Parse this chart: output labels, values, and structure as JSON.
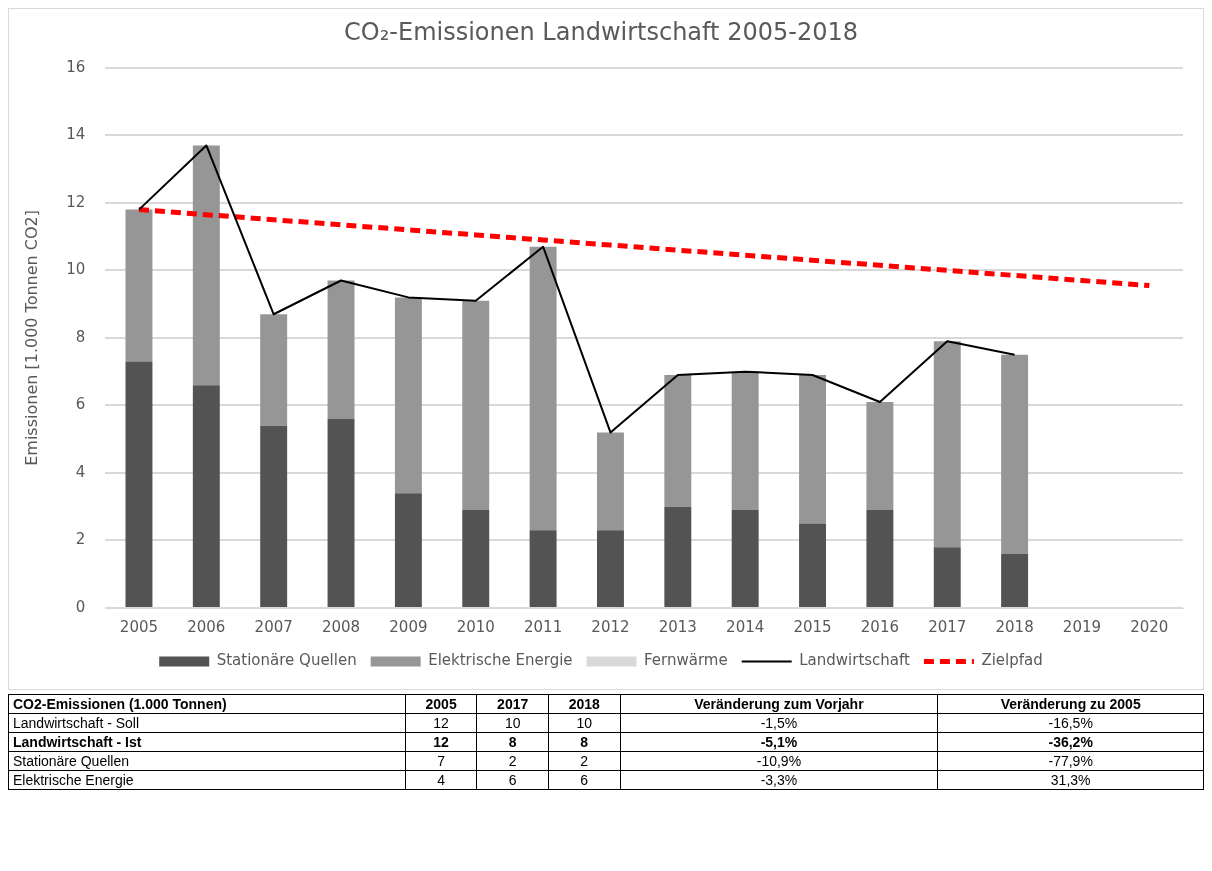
{
  "chart_data": {
    "type": "bar",
    "title": "CO₂-Emissionen Landwirtschaft 2005-2018",
    "ylabel": "Emissionen [1.000 Tonnen CO2]",
    "categories": [
      "2005",
      "2006",
      "2007",
      "2008",
      "2009",
      "2010",
      "2011",
      "2012",
      "2013",
      "2014",
      "2015",
      "2016",
      "2017",
      "2018",
      "2019",
      "2020"
    ],
    "stacked": true,
    "series": [
      {
        "name": "Stationäre Quellen",
        "color": "#535353",
        "values": [
          7.3,
          6.6,
          5.4,
          5.6,
          3.4,
          2.9,
          2.3,
          2.3,
          3.0,
          2.9,
          2.5,
          2.9,
          1.8,
          1.6,
          null,
          null
        ]
      },
      {
        "name": "Elektrische Energie",
        "color": "#969696",
        "values": [
          4.5,
          7.1,
          3.3,
          4.1,
          5.8,
          6.2,
          8.4,
          2.9,
          3.9,
          4.1,
          4.4,
          3.2,
          6.1,
          5.9,
          null,
          null
        ]
      },
      {
        "name": "Fernwärme",
        "color": "#d9d9d9",
        "values": [
          0,
          0,
          0,
          0,
          0,
          0,
          0,
          0,
          0,
          0,
          0,
          0,
          0,
          0,
          null,
          null
        ]
      },
      {
        "name": "Landwirtschaft",
        "type": "line",
        "color": "#000000",
        "line_style": "solid",
        "values": [
          11.8,
          13.7,
          8.7,
          9.7,
          9.2,
          9.1,
          10.7,
          5.2,
          6.9,
          7.0,
          6.9,
          6.1,
          7.9,
          7.5,
          null,
          null
        ]
      },
      {
        "name": "Zielpfad",
        "type": "line",
        "color": "#ff0000",
        "line_style": "dashed",
        "values": [
          11.8,
          11.65,
          11.5,
          11.35,
          11.2,
          11.05,
          10.9,
          10.75,
          10.6,
          10.45,
          10.3,
          10.15,
          10.0,
          9.85,
          9.7,
          9.55
        ]
      }
    ],
    "ylim": [
      0,
      16
    ],
    "yticks": [
      0,
      2,
      4,
      6,
      8,
      10,
      12,
      14,
      16
    ],
    "grid": "y",
    "legend": "bottom",
    "marker": "none",
    "annotations": [
      "CO2-Emissionen (1.000 Tonnen)",
      "2005",
      "2017",
      "2018",
      "Veränderung zum Vorjahr",
      "Veränderung zu 2005",
      "Landwirtschaft - Soll",
      "12",
      "10",
      "10",
      "-1,5%",
      "-16,5%",
      "Landwirtschaft - Ist",
      "12",
      "8",
      "8",
      "-5,1%",
      "-36,2%",
      "Stationäre Quellen",
      "7",
      "2",
      "2",
      "-10,9%",
      "-77,9%",
      "Elektrische Energie",
      "4",
      "6",
      "6",
      "-3,3%",
      "31,3%"
    ]
  }
}
